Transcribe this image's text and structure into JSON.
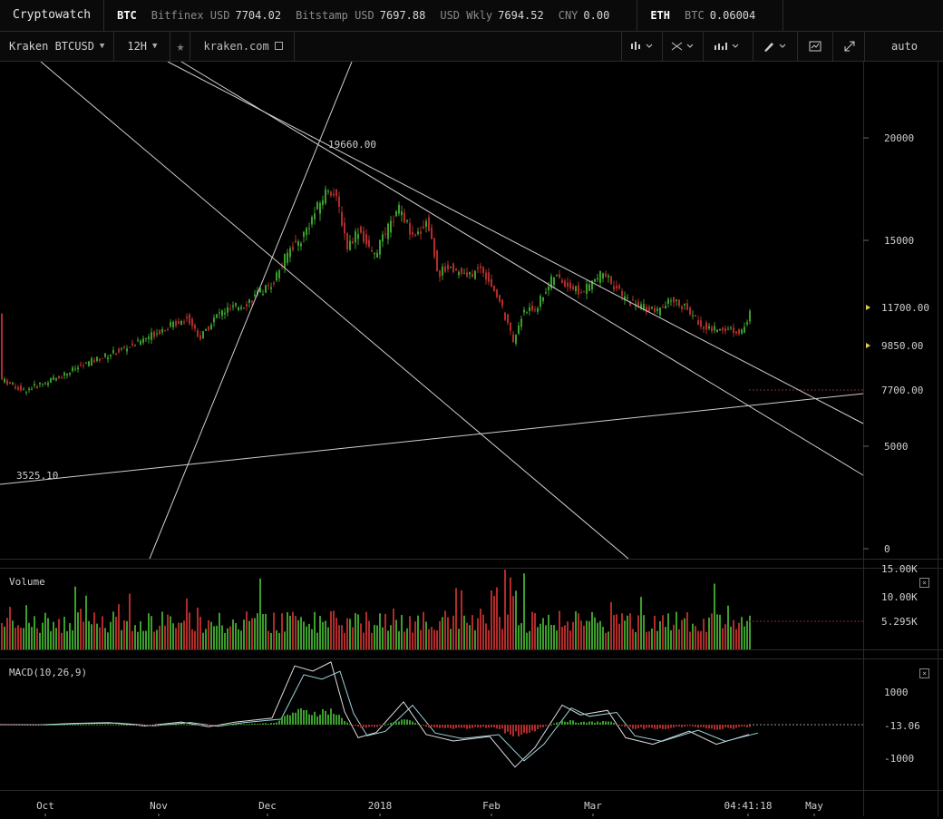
{
  "topbar": {
    "brand": "Cryptowatch",
    "groups": [
      {
        "symbol": "BTC",
        "items": [
          {
            "label": "Bitfinex USD",
            "value": "7704.02"
          },
          {
            "label": "Bitstamp USD",
            "value": "7697.88"
          },
          {
            "label": "USD Wkly",
            "value": "7694.52"
          },
          {
            "label": "CNY",
            "value": "0.00"
          }
        ]
      },
      {
        "symbol": "ETH",
        "items": [
          {
            "label": "BTC",
            "value": "0.06004"
          }
        ]
      }
    ]
  },
  "toolbar": {
    "market": "Kraken BTCUSD",
    "period": "12H",
    "link": "kraken.com",
    "scale": "auto",
    "icons": [
      "candles-icon",
      "indicators-icon",
      "chart-type-icon",
      "draw-icon",
      "screenshot-icon",
      "expand-icon"
    ]
  },
  "chart_data": {
    "type": "candlestick",
    "y_ticks": [
      "20000",
      "15000",
      "5000",
      "0"
    ],
    "price_labels": [
      {
        "text": "11700.00",
        "marker": true,
        "price": 11700
      },
      {
        "text": "9850.00",
        "marker": true,
        "price": 9850
      },
      {
        "text": "7700.00",
        "marker": false,
        "price": 7700
      }
    ],
    "annotations": {
      "high": "19660.00",
      "low": "3525.10"
    },
    "x_ticks": [
      "Oct",
      "Nov",
      "Dec",
      "2018",
      "Feb",
      "Mar",
      "04:41:18",
      "May"
    ],
    "volume": {
      "label": "Volume",
      "ticks": [
        "15.00K",
        "10.00K",
        "5.295K"
      ]
    },
    "macd": {
      "label": "MACD(10,26,9)",
      "ticks": [
        "1000",
        "-13.06",
        "-1000"
      ]
    },
    "colors": {
      "up": "#3c9e2c",
      "down": "#b12b2b",
      "line": "#cfcfcf",
      "macd": "#dddddd",
      "signal": "#9fd3dc"
    }
  }
}
